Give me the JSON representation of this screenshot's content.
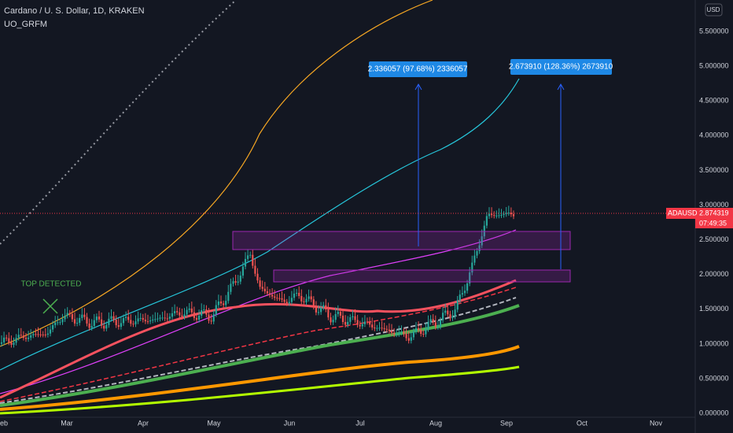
{
  "header": {
    "symbol": "Cardano / U. S. Dollar, 1D, KRAKEN",
    "indicator": "UO_GRFM",
    "currency": "USD"
  },
  "price_axis": {
    "labels": [
      "5.500000",
      "5.000000",
      "4.500000",
      "4.000000",
      "3.500000",
      "3.000000",
      "2.500000",
      "2.000000",
      "1.500000",
      "1.000000",
      "0.500000",
      "0.000000"
    ]
  },
  "time_axis": {
    "labels": [
      "eb",
      "Mar",
      "Apr",
      "May",
      "Jun",
      "Jul",
      "Aug",
      "Sep",
      "Oct",
      "Nov"
    ]
  },
  "price_tag": {
    "symbol": "ADAUSD",
    "price": "2.874319",
    "countdown": "07:49:35"
  },
  "annotations": [
    {
      "label": "2.336057 (97.68%) 2336057"
    },
    {
      "label": "2.673910 (128.36%) 2673910"
    }
  ],
  "signal": "TOP DETECTED"
}
